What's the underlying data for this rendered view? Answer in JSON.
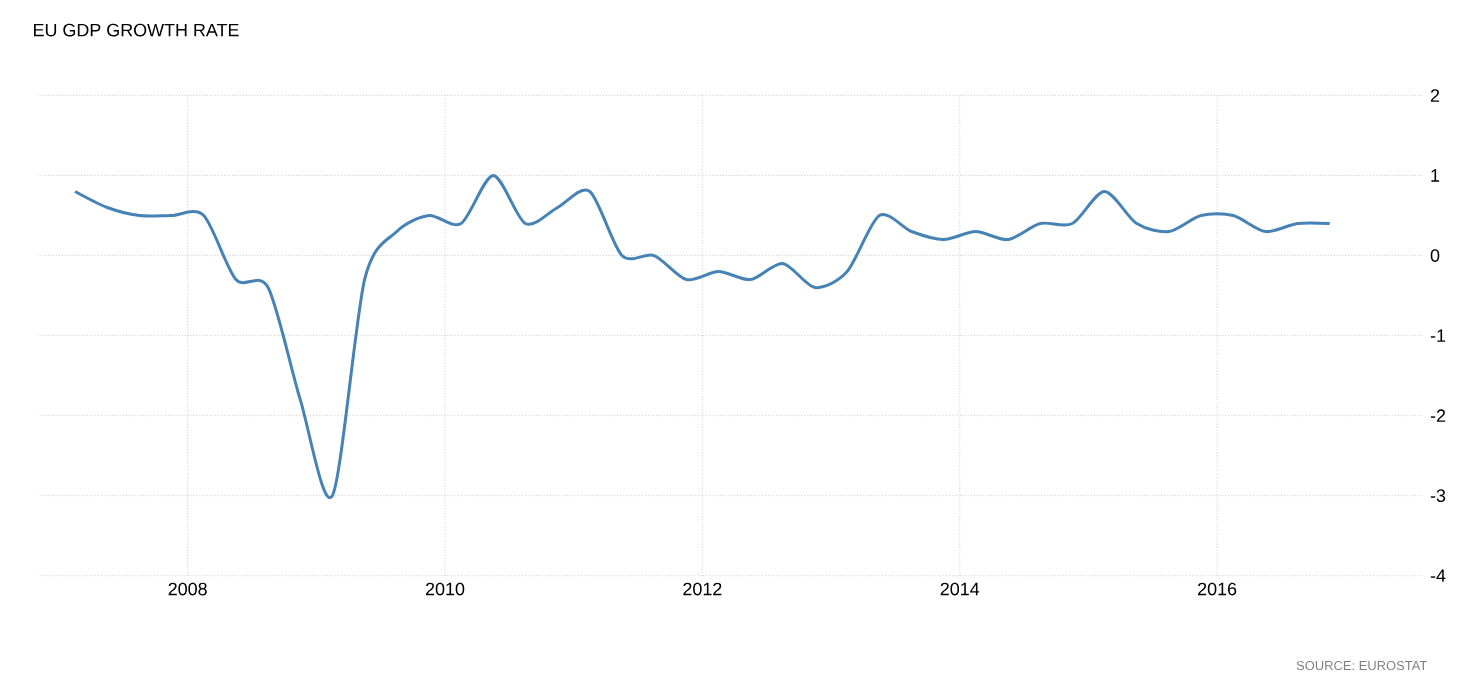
{
  "chart_data": {
    "type": "line",
    "title": "EU GDP GROWTH RATE",
    "annotations": [
      "SOURCE: EUROSTAT"
    ],
    "x": [
      2007.125,
      2007.375,
      2007.625,
      2007.875,
      2008.125,
      2008.375,
      2008.625,
      2008.875,
      2009.125,
      2009.375,
      2009.625,
      2009.875,
      2010.125,
      2010.375,
      2010.625,
      2010.875,
      2011.125,
      2011.375,
      2011.625,
      2011.875,
      2012.125,
      2012.375,
      2012.625,
      2012.875,
      2013.125,
      2013.375,
      2013.625,
      2013.875,
      2014.125,
      2014.375,
      2014.625,
      2014.875,
      2015.125,
      2015.375,
      2015.625,
      2015.875,
      2016.125,
      2016.375,
      2016.625,
      2016.875
    ],
    "series": [
      {
        "color": "#4682b4",
        "values": [
          0.8,
          0.6,
          0.5,
          0.5,
          0.5,
          -0.3,
          -0.4,
          -1.8,
          -3.0,
          -0.3,
          0.3,
          0.5,
          0.4,
          1.0,
          0.4,
          0.6,
          0.8,
          0.0,
          0.0,
          -0.3,
          -0.2,
          -0.3,
          -0.1,
          -0.4,
          -0.2,
          0.5,
          0.3,
          0.2,
          0.3,
          0.2,
          0.4,
          0.4,
          0.8,
          0.4,
          0.3,
          0.5,
          0.5,
          0.3,
          0.4,
          0.4
        ]
      }
    ],
    "xlim": [
      2006.85,
      2017.6
    ],
    "ylim": [
      -4,
      2
    ],
    "xticks": [
      2008,
      2010,
      2012,
      2014,
      2016
    ],
    "yticks": [
      -4,
      -3,
      -2,
      -1,
      0,
      1,
      2
    ],
    "grid": true,
    "marker": "none",
    "line_style": "solid"
  }
}
